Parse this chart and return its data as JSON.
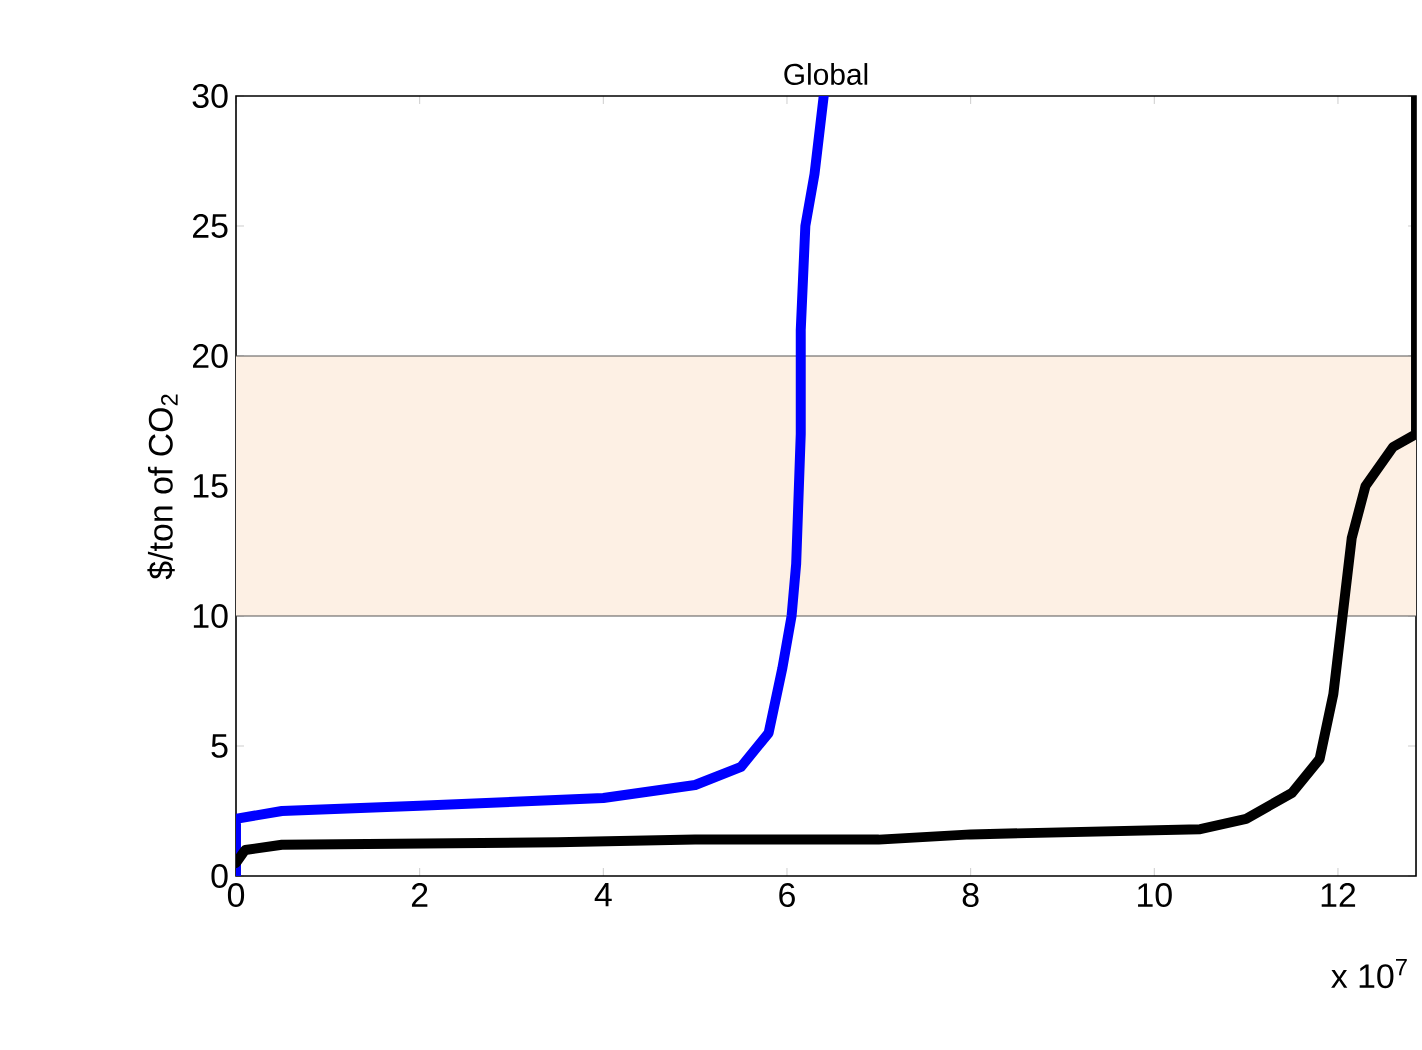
{
  "chart_data": {
    "type": "line",
    "title": "Global",
    "ylabel": "$/ton of CO$_{2}$",
    "annotations": [
      "x 10$^{7}$"
    ],
    "xlim": [
      0,
      12.85
    ],
    "xticks": [
      0,
      2,
      4,
      6,
      8,
      10,
      12
    ],
    "ylim": [
      0,
      30
    ],
    "yticks": [
      0,
      5,
      10,
      15,
      20,
      25,
      30
    ],
    "bands": [
      {
        "axis": "y",
        "from": 10,
        "to": 20,
        "color": "#fdf0e4"
      }
    ],
    "ref_lines": [
      {
        "axis": "y",
        "value": 10,
        "color": "#555555"
      },
      {
        "axis": "y",
        "value": 20,
        "color": "#555555"
      }
    ],
    "marker": "none",
    "line_style": "solid",
    "series": [
      {
        "color": "#0000ff",
        "x": [
          0,
          0,
          0.5,
          2,
          4,
          5,
          5.5,
          5.8,
          5.95,
          6.05,
          6.1,
          6.15,
          6.15,
          6.2,
          6.3,
          6.4
        ],
        "values": [
          0,
          2.2,
          2.5,
          2.7,
          3.0,
          3.5,
          4.2,
          5.5,
          8,
          10,
          12,
          17,
          21,
          25,
          27,
          30
        ]
      },
      {
        "color": "#000000",
        "x": [
          0,
          0.1,
          0.5,
          3.5,
          5,
          7,
          8,
          10.5,
          11,
          11.5,
          11.8,
          11.95,
          12.05,
          12.15,
          12.3,
          12.6,
          12.85,
          12.85
        ],
        "values": [
          0.5,
          1.0,
          1.2,
          1.3,
          1.4,
          1.4,
          1.6,
          1.8,
          2.2,
          3.2,
          4.5,
          7,
          10,
          13,
          15,
          16.5,
          17,
          30
        ]
      }
    ]
  }
}
